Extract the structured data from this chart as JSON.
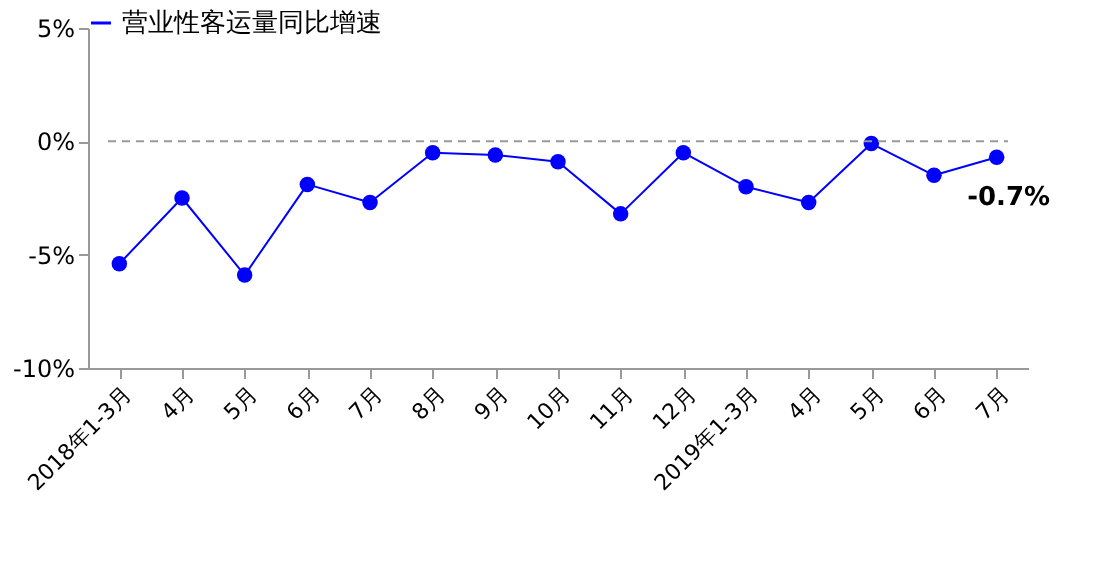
{
  "chart_data": {
    "type": "line",
    "categories": [
      "2018年1-3月",
      "4月",
      "5月",
      "6月",
      "7月",
      "8月",
      "9月",
      "10月",
      "11月",
      "12月",
      "2019年1-3月",
      "4月",
      "5月",
      "6月",
      "7月"
    ],
    "series": [
      {
        "name": "营业性客运量同比增速",
        "color": "#0000ff",
        "values": [
          -5.4,
          -2.5,
          -5.9,
          -1.9,
          -2.7,
          -0.5,
          -0.6,
          -0.9,
          -3.2,
          -0.5,
          -2.0,
          -2.7,
          -0.1,
          -1.5,
          -0.7
        ],
        "value_labels": [
          null,
          null,
          null,
          null,
          null,
          null,
          null,
          null,
          null,
          null,
          null,
          null,
          null,
          null,
          "-0.7%"
        ]
      }
    ],
    "ylim": [
      -10,
      5
    ],
    "yticks": [
      {
        "value": -10,
        "label": "-10%"
      },
      {
        "value": -5,
        "label": "-5%"
      },
      {
        "value": 0,
        "label": "0%"
      },
      {
        "value": 5,
        "label": "5%"
      }
    ],
    "ref_lines": [
      {
        "axis": "y",
        "value": 0,
        "color": "#999999",
        "line_style": "dashed"
      }
    ],
    "marker": "circle",
    "legend": "top",
    "grid": false
  }
}
